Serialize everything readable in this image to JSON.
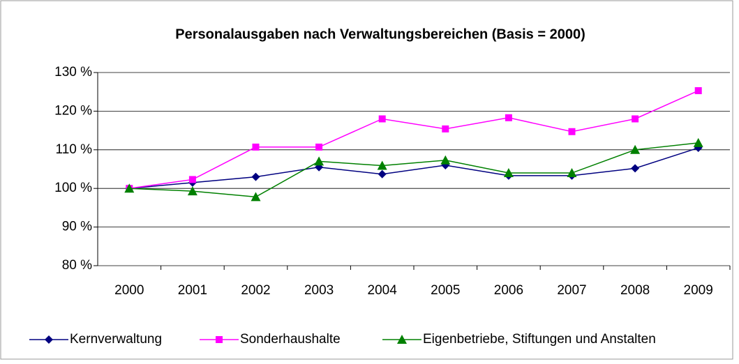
{
  "chart_data": {
    "type": "line",
    "title": "Personalausgaben nach Verwaltungsbereichen (Basis = 2000)",
    "categories": [
      "2000",
      "2001",
      "2002",
      "2003",
      "2004",
      "2005",
      "2006",
      "2007",
      "2008",
      "2009"
    ],
    "series": [
      {
        "name": "Kernverwaltung",
        "color": "#000080",
        "marker": "diamond",
        "values": [
          100,
          101.5,
          103,
          105.5,
          103.7,
          106,
          103.3,
          103.3,
          105.2,
          110.5
        ]
      },
      {
        "name": "Sonderhaushalte",
        "color": "#ff00ff",
        "marker": "square",
        "values": [
          100,
          102.3,
          110.7,
          110.7,
          118,
          115.4,
          118.3,
          114.7,
          118,
          125.3
        ]
      },
      {
        "name": "Eigenbetriebe, Stiftungen und Anstalten",
        "color": "#008000",
        "marker": "triangle",
        "values": [
          100,
          99.3,
          97.8,
          107,
          105.9,
          107.3,
          104,
          104,
          110,
          111.8
        ]
      }
    ],
    "ylim": [
      80,
      130
    ],
    "yticks": [
      {
        "value": 80,
        "label": "80 %"
      },
      {
        "value": 90,
        "label": "90 %"
      },
      {
        "value": 100,
        "label": "100 %"
      },
      {
        "value": 110,
        "label": "110 %"
      },
      {
        "value": 120,
        "label": "120 %"
      },
      {
        "value": 130,
        "label": "130 %"
      }
    ],
    "grid": true,
    "legend": "bottom"
  }
}
